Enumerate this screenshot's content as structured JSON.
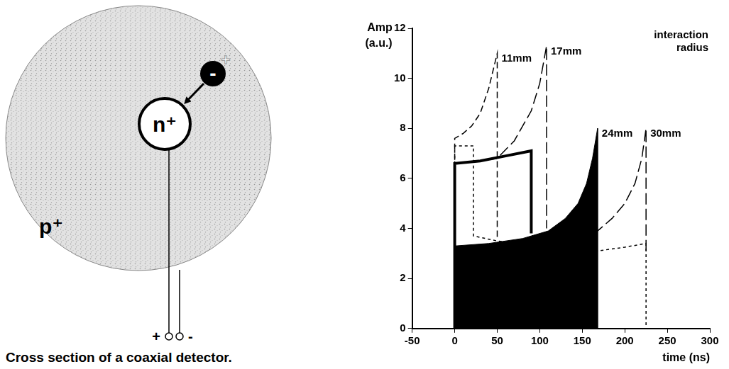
{
  "diagram": {
    "inner_label": "n⁺",
    "outer_label": "p⁺",
    "charge": "-",
    "hole": "+",
    "terminals": [
      "+",
      "-"
    ],
    "caption": "Cross section of a coaxial detector."
  },
  "chart_data": {
    "type": "line",
    "color": "#000000",
    "grid": false,
    "x_label": "time (ns)",
    "y_label": "Amp (a.u.)",
    "annotation": "interaction radius",
    "xlim": [
      -50,
      300
    ],
    "xticks": [
      -50,
      0,
      50,
      100,
      150,
      200,
      250,
      300
    ],
    "ylim": [
      0,
      12
    ],
    "yticks": [
      0,
      2,
      4,
      6,
      8,
      10,
      12
    ],
    "series": [
      {
        "type": "area",
        "name": "24mm",
        "line_style": "solid",
        "x": [
          -50,
          0,
          0,
          40,
          80,
          110,
          130,
          145,
          155,
          162,
          168,
          168,
          300
        ],
        "values": [
          0,
          0,
          3.3,
          3.4,
          3.6,
          3.9,
          4.4,
          5.0,
          5.8,
          6.8,
          8.0,
          0,
          0
        ]
      },
      {
        "name": "11mm",
        "line_style": "dashed",
        "x": [
          0,
          0,
          10,
          20,
          30,
          40,
          50,
          50
        ],
        "values": [
          0,
          7.6,
          7.8,
          8.1,
          8.6,
          9.6,
          11.0,
          3.6
        ]
      },
      {
        "name": "17mm",
        "line_style": "longdash",
        "x": [
          0,
          30,
          50,
          70,
          90,
          100,
          108,
          108
        ],
        "values": [
          6.6,
          6.7,
          6.8,
          7.5,
          8.7,
          9.8,
          11.3,
          4.0
        ]
      },
      {
        "name": "30mm",
        "line_style": "longdash",
        "x": [
          0,
          50,
          100,
          140,
          168,
          185,
          200,
          212,
          220,
          225,
          225
        ],
        "values": [
          3.0,
          3.1,
          3.3,
          3.6,
          3.9,
          4.4,
          5.0,
          5.8,
          6.8,
          8.0,
          3.1
        ]
      },
      {
        "line_style": "thick",
        "x": [
          0,
          0,
          30,
          60,
          90,
          90
        ],
        "values": [
          0,
          6.6,
          6.7,
          6.9,
          7.1,
          3.8
        ]
      },
      {
        "line_style": "dotted",
        "x": [
          0,
          0,
          22,
          22,
          50,
          100,
          168,
          200,
          225,
          225
        ],
        "values": [
          0,
          7.3,
          7.3,
          3.7,
          3.5,
          3.3,
          3.1,
          3.25,
          3.4,
          0
        ]
      }
    ]
  }
}
